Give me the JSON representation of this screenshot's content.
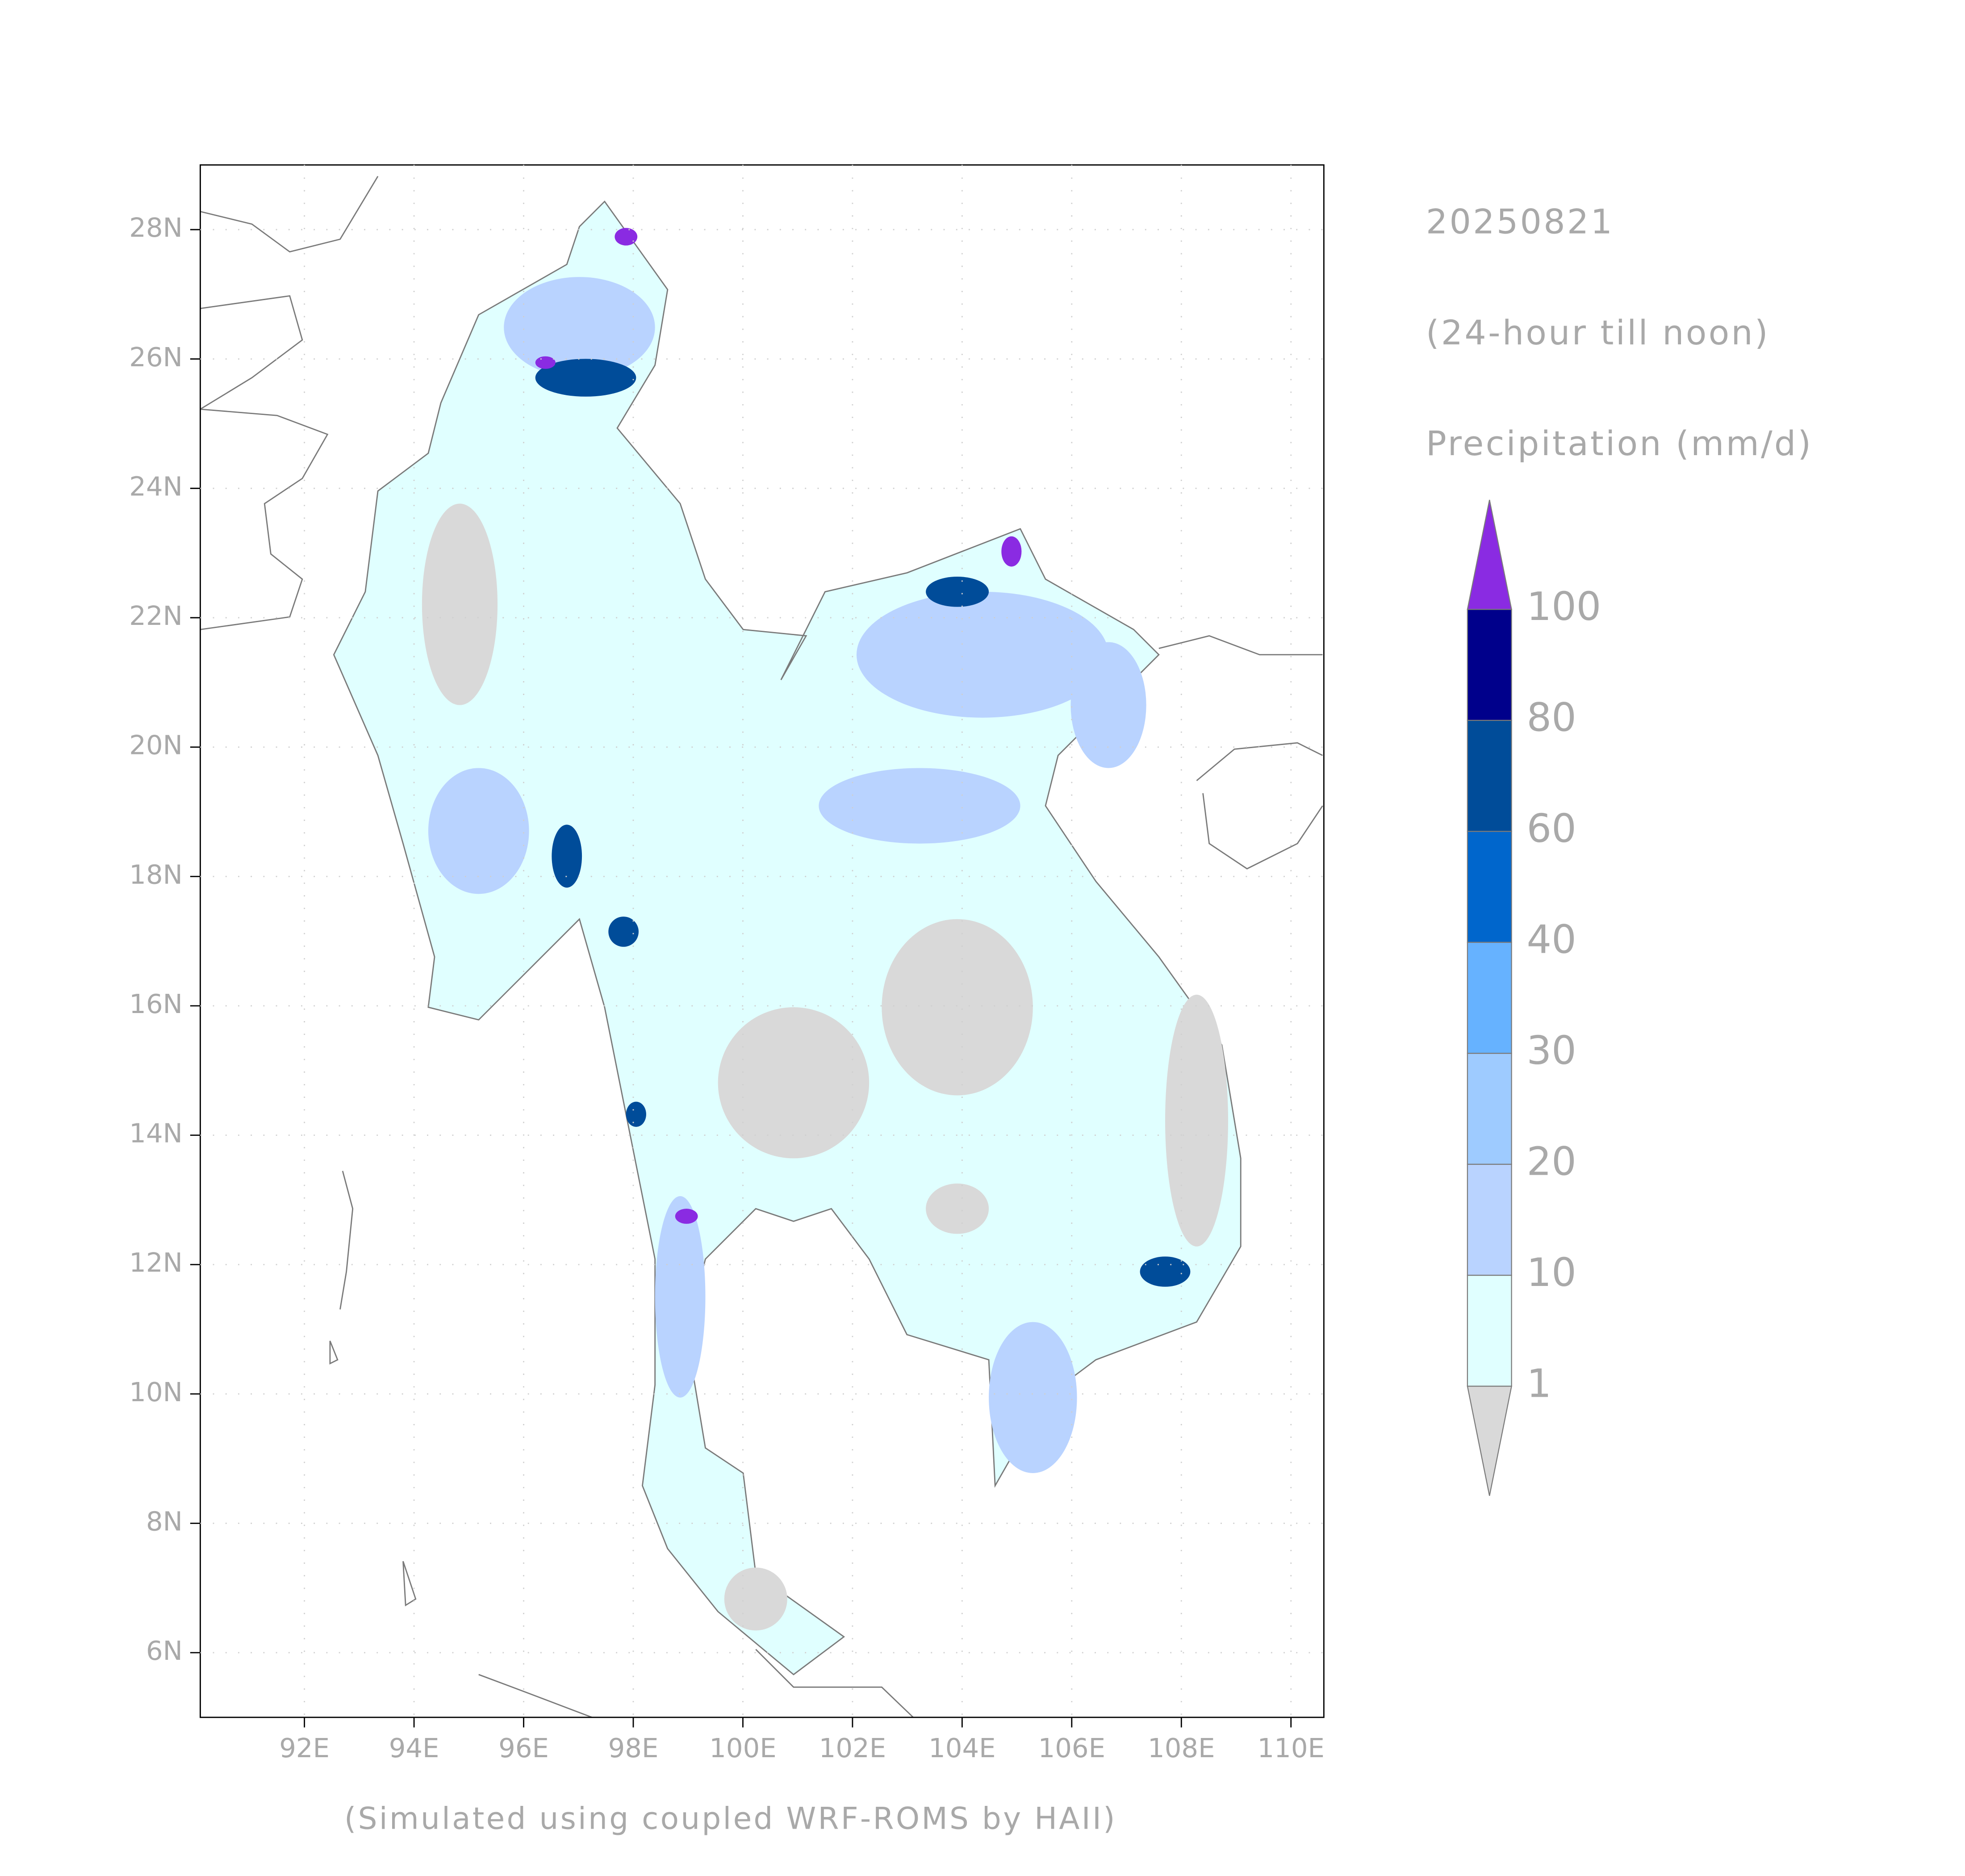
{
  "header": {
    "date": "20250821",
    "period": "(24-hour till noon)",
    "variable": "Precipitation (mm/d)"
  },
  "footer": "(Simulated using coupled WRF-ROMS by HAII)",
  "map": {
    "xlim": [
      90.1,
      110.6
    ],
    "ylim": [
      5,
      29
    ],
    "xticks": [
      {
        "value": 92,
        "label": "92E"
      },
      {
        "value": 94,
        "label": "94E"
      },
      {
        "value": 96,
        "label": "96E"
      },
      {
        "value": 98,
        "label": "98E"
      },
      {
        "value": 100,
        "label": "100E"
      },
      {
        "value": 102,
        "label": "102E"
      },
      {
        "value": 104,
        "label": "104E"
      },
      {
        "value": 106,
        "label": "106E"
      },
      {
        "value": 108,
        "label": "108E"
      },
      {
        "value": 110,
        "label": "110E"
      }
    ],
    "yticks": [
      {
        "value": 6,
        "label": "6N"
      },
      {
        "value": 8,
        "label": "8N"
      },
      {
        "value": 10,
        "label": "10N"
      },
      {
        "value": 12,
        "label": "12N"
      },
      {
        "value": 14,
        "label": "14N"
      },
      {
        "value": 16,
        "label": "16N"
      },
      {
        "value": 18,
        "label": "18N"
      },
      {
        "value": 20,
        "label": "20N"
      },
      {
        "value": 22,
        "label": "22N"
      },
      {
        "value": 24,
        "label": "24N"
      },
      {
        "value": 26,
        "label": "26N"
      },
      {
        "value": 28,
        "label": "28N"
      }
    ],
    "grid": true
  },
  "colorbar": {
    "levels": [
      1,
      10,
      20,
      30,
      40,
      60,
      80,
      100
    ],
    "colors": [
      "#e0ffff",
      "#b9d3ff",
      "#9ecbff",
      "#66b2ff",
      "#0066cc",
      "#004c99",
      "#00008b"
    ],
    "under_color": "#d9d9d9",
    "over_color": "#8a2be2"
  }
}
